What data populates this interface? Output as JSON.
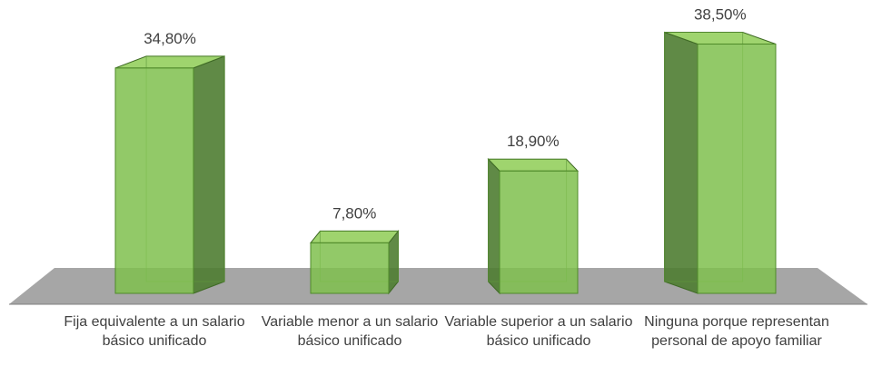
{
  "chart_data": {
    "type": "bar3d",
    "categories": [
      "Fija equivalente a un salario básico unificado",
      "Variable menor a un salario básico unificado",
      "Variable superior a un salario básico unificado",
      "Ninguna porque representan personal de apoyo familiar"
    ],
    "values": [
      34.8,
      7.8,
      18.9,
      38.5
    ],
    "value_labels": [
      "34,80%",
      "7,80%",
      "18,90%",
      "38,50%"
    ],
    "color": "#7fbf4d"
  }
}
